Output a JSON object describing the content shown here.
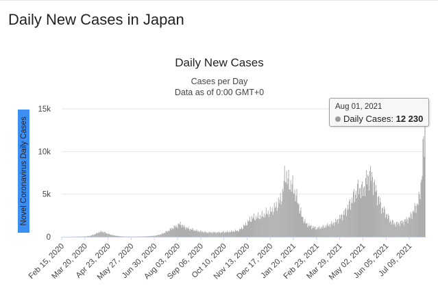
{
  "page": {
    "heading": "Daily New Cases in Japan"
  },
  "tooltip": {
    "date": "Aug 01, 2021",
    "series_label": "Daily Cases",
    "separator": ":",
    "value": "12 230"
  },
  "colors": {
    "bars": "#a6a6a6",
    "grid": "#e6e6e6",
    "ylabel_bg": "#3d8ef3",
    "ylabel_text": "#222222"
  },
  "chart_data": {
    "type": "bar",
    "title": "Daily New Cases",
    "subtitle_line1": "Cases per Day",
    "subtitle_line2": "Data as of 0:00 GMT+0",
    "ylabel": "Novel Coronavirus Daily Cases",
    "xlabel": "",
    "ylim": [
      0,
      15000
    ],
    "yticks": [
      0,
      5000,
      10000,
      15000
    ],
    "ytick_labels": [
      "0",
      "5k",
      "10k",
      "15k"
    ],
    "x_start": "2020-02-15",
    "x_end": "2021-08-01",
    "xtick_labels": [
      "Feb 15, 2020",
      "Mar 20, 2020",
      "Apr 23, 2020",
      "May 27, 2020",
      "Jun 30, 2020",
      "Aug 03, 2020",
      "Sep 06, 2020",
      "Oct 10, 2020",
      "Nov 13, 2020",
      "Dec 17, 2020",
      "Jan 20, 2021",
      "Feb 23, 2021",
      "Mar 29, 2021",
      "May 02, 2021",
      "Jun 05, 2021",
      "Jul 09, 2021"
    ],
    "series": [
      {
        "name": "Daily Cases",
        "points": [
          [
            "2020-02-15",
            5
          ],
          [
            "2020-03-01",
            15
          ],
          [
            "2020-03-20",
            50
          ],
          [
            "2020-03-28",
            120
          ],
          [
            "2020-04-05",
            350
          ],
          [
            "2020-04-10",
            550
          ],
          [
            "2020-04-15",
            620
          ],
          [
            "2020-04-20",
            450
          ],
          [
            "2020-04-27",
            250
          ],
          [
            "2020-05-05",
            120
          ],
          [
            "2020-05-15",
            40
          ],
          [
            "2020-05-27",
            20
          ],
          [
            "2020-06-15",
            50
          ],
          [
            "2020-06-30",
            120
          ],
          [
            "2020-07-10",
            300
          ],
          [
            "2020-07-20",
            700
          ],
          [
            "2020-07-28",
            1100
          ],
          [
            "2020-08-03",
            1300
          ],
          [
            "2020-08-07",
            1550
          ],
          [
            "2020-08-12",
            1200
          ],
          [
            "2020-08-20",
            950
          ],
          [
            "2020-09-01",
            700
          ],
          [
            "2020-09-15",
            520
          ],
          [
            "2020-10-01",
            520
          ],
          [
            "2020-10-20",
            600
          ],
          [
            "2020-11-01",
            750
          ],
          [
            "2020-11-08",
            1200
          ],
          [
            "2020-11-13",
            1650
          ],
          [
            "2020-11-20",
            2200
          ],
          [
            "2020-11-28",
            2300
          ],
          [
            "2020-12-05",
            2450
          ],
          [
            "2020-12-12",
            2800
          ],
          [
            "2020-12-17",
            2900
          ],
          [
            "2020-12-25",
            3500
          ],
          [
            "2020-12-31",
            4200
          ],
          [
            "2021-01-04",
            5000
          ],
          [
            "2021-01-08",
            7600
          ],
          [
            "2021-01-12",
            6500
          ],
          [
            "2021-01-16",
            6200
          ],
          [
            "2021-01-20",
            5700
          ],
          [
            "2021-01-26",
            4300
          ],
          [
            "2021-02-01",
            2500
          ],
          [
            "2021-02-07",
            1600
          ],
          [
            "2021-02-15",
            1200
          ],
          [
            "2021-02-23",
            1000
          ],
          [
            "2021-03-05",
            1150
          ],
          [
            "2021-03-15",
            1450
          ],
          [
            "2021-03-22",
            1700
          ],
          [
            "2021-03-29",
            2200
          ],
          [
            "2021-04-05",
            2800
          ],
          [
            "2021-04-12",
            3700
          ],
          [
            "2021-04-19",
            4800
          ],
          [
            "2021-04-26",
            5800
          ],
          [
            "2021-05-02",
            5400
          ],
          [
            "2021-05-07",
            6600
          ],
          [
            "2021-05-12",
            7300
          ],
          [
            "2021-05-16",
            6800
          ],
          [
            "2021-05-22",
            5100
          ],
          [
            "2021-05-29",
            3500
          ],
          [
            "2021-06-05",
            2700
          ],
          [
            "2021-06-12",
            1800
          ],
          [
            "2021-06-19",
            1500
          ],
          [
            "2021-06-26",
            1650
          ],
          [
            "2021-07-03",
            1900
          ],
          [
            "2021-07-09",
            2200
          ],
          [
            "2021-07-15",
            3000
          ],
          [
            "2021-07-20",
            3700
          ],
          [
            "2021-07-24",
            4600
          ],
          [
            "2021-07-27",
            7000
          ],
          [
            "2021-07-29",
            9500
          ],
          [
            "2021-07-30",
            10700
          ],
          [
            "2021-07-31",
            11000
          ],
          [
            "2021-08-01",
            12230
          ]
        ]
      }
    ],
    "highlight": {
      "date": "2021-08-01",
      "value": 12230
    }
  }
}
